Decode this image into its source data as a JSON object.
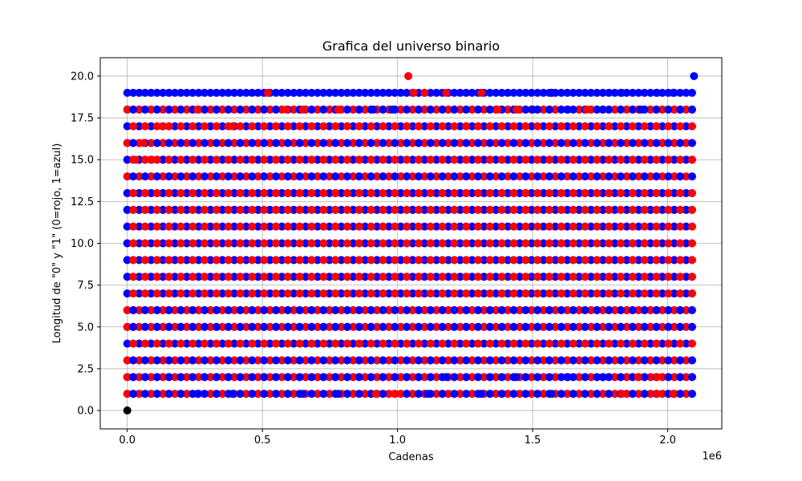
{
  "chart_data": {
    "type": "scatter",
    "title": "Grafica del universo binario",
    "xlabel": "Cadenas",
    "ylabel": "Longitud de \"0\" y \"1\" (0=rojo, 1=azul)",
    "x_offset_text": "1e6",
    "xlim": [
      -100000,
      2200000
    ],
    "ylim": [
      -1.1,
      21.1
    ],
    "x_ticks": [
      0,
      500000,
      1000000,
      1500000,
      2000000
    ],
    "x_tick_labels": [
      "0.0",
      "0.5",
      "1.0",
      "1.5",
      "2.0"
    ],
    "y_ticks": [
      0,
      2.5,
      5,
      7.5,
      10,
      12.5,
      15,
      17.5,
      20
    ],
    "y_tick_labels": [
      "0.0",
      "2.5",
      "5.0",
      "7.5",
      "10.0",
      "12.5",
      "15.0",
      "17.5",
      "20.0"
    ],
    "grid": true,
    "x_max_data": 2097150,
    "series": [
      {
        "color": "#ff0000",
        "bands": [
          {
            "y": 1,
            "x_range": [
              0,
              2097150
            ]
          },
          {
            "y": 2,
            "x_range": [
              0,
              2097150
            ]
          },
          {
            "y": 3,
            "x_range": [
              0,
              2097150
            ]
          },
          {
            "y": 4,
            "x_range": [
              0,
              2097150
            ]
          },
          {
            "y": 5,
            "x_range": [
              0,
              2097150
            ]
          },
          {
            "y": 6,
            "x_range": [
              0,
              2097150
            ]
          },
          {
            "y": 7,
            "x_range": [
              0,
              2097150
            ]
          },
          {
            "y": 8,
            "x_range": [
              0,
              2097150
            ]
          },
          {
            "y": 9,
            "x_range": [
              0,
              2097150
            ]
          },
          {
            "y": 10,
            "x_range": [
              0,
              2097150
            ]
          },
          {
            "y": 11,
            "x_range": [
              0,
              2097150
            ]
          },
          {
            "y": 12,
            "x_range": [
              0,
              2097150
            ]
          },
          {
            "y": 13,
            "x_range": [
              0,
              2097150
            ]
          },
          {
            "y": 14,
            "x_range": [
              0,
              2097150
            ]
          },
          {
            "y": 15,
            "x_range": [
              0,
              2097150
            ]
          },
          {
            "y": 16,
            "x_range": [
              0,
              2097150
            ]
          },
          {
            "y": 17,
            "x_range": [
              0,
              2097150
            ]
          },
          {
            "y": 18,
            "x_range": [
              0,
              2097150
            ]
          }
        ],
        "points": [
          [
            30000,
            15
          ],
          [
            60000,
            16
          ],
          [
            90000,
            15
          ],
          [
            130000,
            17
          ],
          [
            260000,
            18
          ],
          [
            390000,
            17
          ],
          [
            520000,
            19
          ],
          [
            590000,
            18
          ],
          [
            650000,
            18
          ],
          [
            780000,
            18
          ],
          [
            920000,
            1
          ],
          [
            990000,
            1
          ],
          [
            1040000,
            20
          ],
          [
            1060000,
            19
          ],
          [
            1100000,
            19
          ],
          [
            1180000,
            19
          ],
          [
            1310000,
            19
          ],
          [
            1370000,
            18
          ],
          [
            1440000,
            18
          ],
          [
            1570000,
            19
          ],
          [
            1700000,
            18
          ],
          [
            1830000,
            1
          ],
          [
            1960000,
            1
          ],
          [
            2020000,
            1
          ],
          [
            1890000,
            2
          ],
          [
            1960000,
            2
          ]
        ]
      },
      {
        "color": "#0000ff",
        "bands": [
          {
            "y": 1,
            "x_range": [
              0,
              2097150
            ]
          },
          {
            "y": 2,
            "x_range": [
              0,
              2097150
            ]
          },
          {
            "y": 3,
            "x_range": [
              0,
              2097150
            ]
          },
          {
            "y": 4,
            "x_range": [
              0,
              2097150
            ]
          },
          {
            "y": 5,
            "x_range": [
              0,
              2097150
            ]
          },
          {
            "y": 6,
            "x_range": [
              0,
              2097150
            ]
          },
          {
            "y": 7,
            "x_range": [
              0,
              2097150
            ]
          },
          {
            "y": 8,
            "x_range": [
              0,
              2097150
            ]
          },
          {
            "y": 9,
            "x_range": [
              0,
              2097150
            ]
          },
          {
            "y": 10,
            "x_range": [
              0,
              2097150
            ]
          },
          {
            "y": 11,
            "x_range": [
              0,
              2097150
            ]
          },
          {
            "y": 12,
            "x_range": [
              0,
              2097150
            ]
          },
          {
            "y": 13,
            "x_range": [
              0,
              2097150
            ]
          },
          {
            "y": 14,
            "x_range": [
              0,
              2097150
            ]
          },
          {
            "y": 15,
            "x_range": [
              0,
              2097150
            ]
          },
          {
            "y": 16,
            "x_range": [
              0,
              2097150
            ]
          },
          {
            "y": 17,
            "x_range": [
              0,
              2097150
            ]
          },
          {
            "y": 18,
            "x_range": [
              0,
              2097150
            ]
          },
          {
            "y": 19,
            "x_range": [
              0,
              2097150
            ]
          }
        ],
        "points": [
          [
            2097150,
            20
          ],
          [
            1830000,
            19
          ],
          [
            1960000,
            19
          ],
          [
            2020000,
            19
          ],
          [
            1570000,
            1
          ],
          [
            1310000,
            1
          ],
          [
            1110000,
            1
          ],
          [
            780000,
            1
          ],
          [
            650000,
            1
          ],
          [
            390000,
            1
          ],
          [
            260000,
            1
          ],
          [
            910000,
            18
          ],
          [
            980000,
            18
          ],
          [
            1500000,
            18
          ],
          [
            1630000,
            18
          ],
          [
            1760000,
            18
          ],
          [
            1900000,
            18
          ],
          [
            1570000,
            19
          ],
          [
            1180000,
            2
          ],
          [
            1440000,
            2
          ],
          [
            1630000,
            2
          ],
          [
            1760000,
            2
          ]
        ]
      },
      {
        "color": "#000000",
        "points": [
          [
            0,
            0
          ]
        ]
      }
    ]
  }
}
